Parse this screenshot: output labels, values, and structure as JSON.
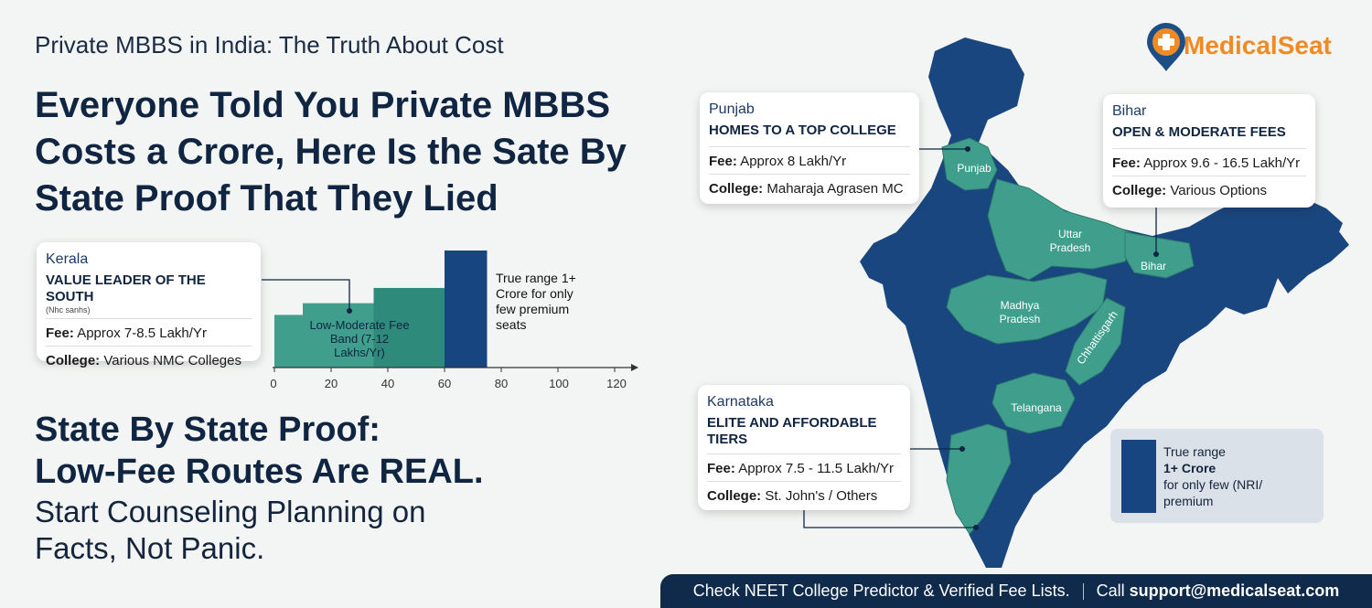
{
  "kicker": "Private MBBS in India: The Truth About Cost",
  "headline": "Everyone Told You Private MBBS Costs a Crore, Here Is the Sate By State Proof That They Lied",
  "brand": {
    "name": "MedicalSeat",
    "logo_icon": "map-pin-medical-icon"
  },
  "cards": {
    "kerala": {
      "state": "Kerala",
      "tag": "VALUE LEADER OF THE SOUTH",
      "sub": "(Nhc sanhs)",
      "fee_label": "Fee:",
      "fee": "Approx 7-8.5 Lakh/Yr",
      "college_label": "College:",
      "college": "Various NMC Colleges"
    },
    "punjab": {
      "state": "Punjab",
      "tag": "HOMES TO A TOP COLLEGE",
      "fee_label": "Fee:",
      "fee": "Approx 8 Lakh/Yr",
      "college_label": "College:",
      "college": "Maharaja Agrasen MC"
    },
    "bihar": {
      "state": "Bihar",
      "tag": "OPEN & MODERATE FEES",
      "fee_label": "Fee:",
      "fee": "Approx 9.6 - 16.5 Lakh/Yr",
      "college_label": "College:",
      "college": "Various Options"
    },
    "karnataka": {
      "state": "Karnataka",
      "tag": "ELITE AND AFFORDABLE TIERS",
      "fee_label": "Fee:",
      "fee": "Approx 7.5 - 11.5 Lakh/Yr",
      "college_label": "College:",
      "college": "St. John's / Others"
    }
  },
  "chart": {
    "band_label": "Low-Moderate Fee Band (7-12 Lakhs/Yr)",
    "range_label": "True range 1+ Crore for only few premium seats",
    "ticks": [
      "0",
      "20",
      "40",
      "60",
      "80",
      "100",
      "120"
    ]
  },
  "chart_data": {
    "type": "bar",
    "xlim": [
      0,
      120
    ],
    "ticks": [
      0,
      20,
      40,
      60,
      80,
      100,
      120
    ],
    "bars": [
      {
        "x0": 0,
        "x1": 10,
        "height": 0.45,
        "color": "#3f9f8c"
      },
      {
        "x0": 10,
        "x1": 35,
        "height": 0.55,
        "color": "#3f9f8c"
      },
      {
        "x0": 35,
        "x1": 60,
        "height": 0.68,
        "color": "#2e8a7a"
      },
      {
        "x0": 60,
        "x1": 75,
        "height": 1.0,
        "color": "#17457f"
      }
    ],
    "annotations": [
      "Low-Moderate Fee Band (7-12 Lakhs/Yr)",
      "True range 1+ Crore for only few premium seats"
    ]
  },
  "map_labels": {
    "punjab": "Punjab",
    "up": "Uttar Pradesh",
    "bihar": "Bihar",
    "mp": "Madhya Pradesh",
    "chhattisgarh": "Chhattisgarh",
    "telangana": "Telangana"
  },
  "legend": {
    "line1": "True range",
    "line2": "1+ Crore",
    "line3": "for only few (NRI/",
    "line4": "premium"
  },
  "proof": {
    "line1": "State By State Proof:",
    "line2": "Low-Fee Routes Are REAL.",
    "line3": "Start Counseling Planning on Facts, Not Panic."
  },
  "footer": {
    "left": "Check NEET College Predictor & Verified Fee Lists.",
    "call": "Call",
    "email": "support@medicalseat.com"
  },
  "colors": {
    "navy": "#17457f",
    "teal": "#3f9f8c",
    "dark": "#0f2541",
    "orange": "#f08a24"
  }
}
